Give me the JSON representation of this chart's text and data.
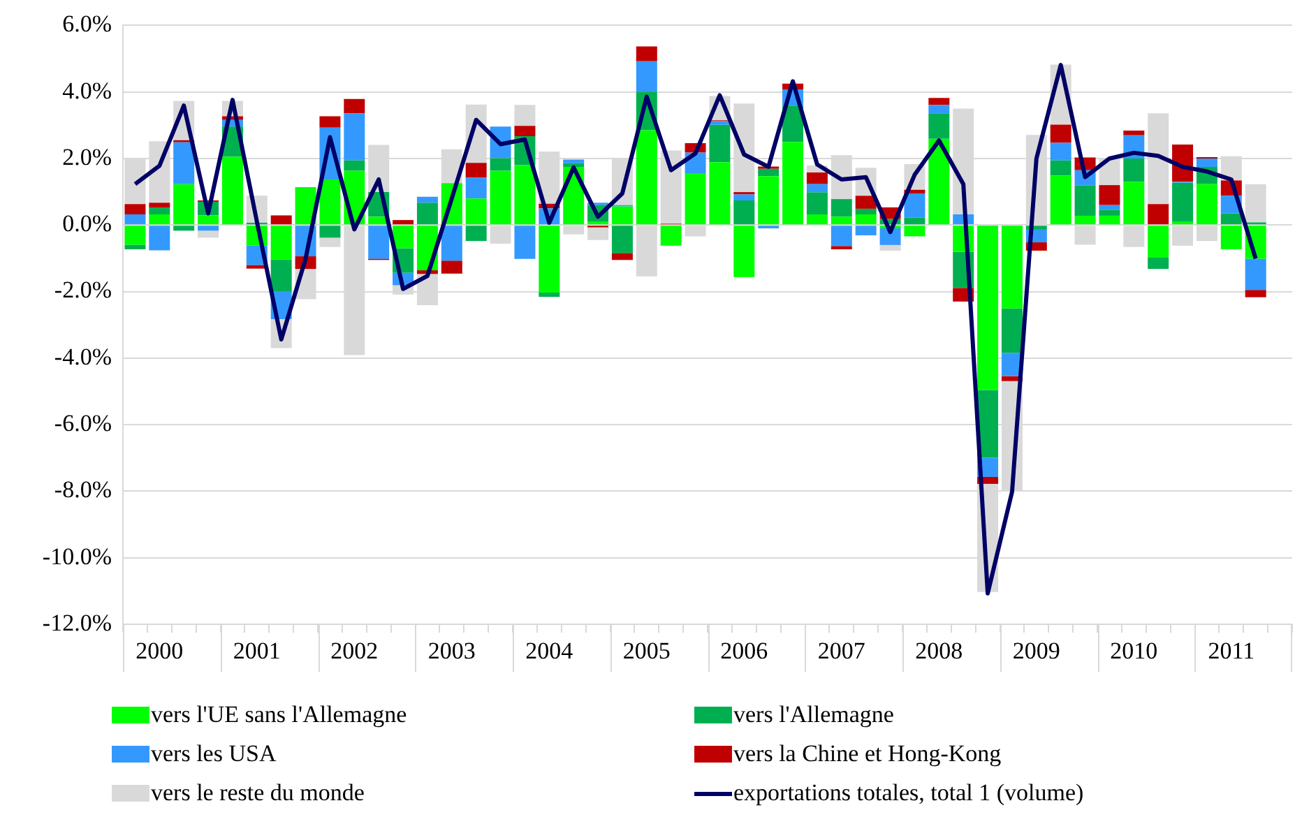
{
  "chart_data": {
    "type": "bar",
    "stacked": true,
    "categories": [
      null,
      "2000",
      null,
      null,
      null,
      "2001",
      null,
      null,
      null,
      "2002",
      null,
      null,
      null,
      "2003",
      null,
      null,
      null,
      "2004",
      null,
      null,
      null,
      "2005",
      null,
      null,
      null,
      "2006",
      null,
      null,
      null,
      "2007",
      null,
      null,
      null,
      "2008",
      null,
      null,
      null,
      "2009",
      null,
      null,
      null,
      "2010",
      null,
      null,
      null,
      "2011",
      null,
      null
    ],
    "series": [
      {
        "name": "vers l'UE sans l'Allemagne",
        "color": "#00ff00",
        "values": [
          -0.59,
          0.32,
          1.23,
          0.29,
          2.05,
          -0.62,
          -1.04,
          1.14,
          1.37,
          1.63,
          0.25,
          -0.7,
          -1.36,
          1.26,
          0.8,
          1.63,
          1.8,
          -2.03,
          1.75,
          0.11,
          0.56,
          2.85,
          -0.62,
          1.56,
          1.89,
          -1.57,
          1.47,
          2.5,
          0.32,
          0.25,
          0.32,
          -0.1,
          -0.34,
          2.59,
          -0.8,
          -4.96,
          -2.51,
          0,
          1.49,
          0.28,
          0.28,
          1.3,
          -0.98,
          0.11,
          1.23,
          -0.73,
          -1.01,
          null
        ]
      },
      {
        "name": "vers l'Allemagne",
        "color": "#00b050",
        "values": [
          -0.14,
          0.21,
          -0.17,
          0.41,
          0.91,
          0.07,
          -0.95,
          0,
          -0.38,
          0.31,
          0.74,
          -0.73,
          0.67,
          0,
          -0.48,
          0.38,
          0.87,
          -0.13,
          0.11,
          0.49,
          -0.84,
          1.16,
          0,
          0,
          1.12,
          0.74,
          0.22,
          1.09,
          0.66,
          0.53,
          0.17,
          0.18,
          0.22,
          0.77,
          -1.09,
          -2.03,
          -1.33,
          -0.14,
          0.45,
          0.91,
          0.18,
          0.7,
          -0.34,
          1.16,
          0.52,
          0.35,
          0.08,
          null
        ]
      },
      {
        "name": "vers les USA",
        "color": "#3399ff",
        "values": [
          0.32,
          -0.76,
          1.26,
          -0.17,
          0.2,
          -0.58,
          -0.84,
          -0.94,
          1.56,
          1.42,
          -1.01,
          -0.38,
          0.18,
          -1.07,
          0.62,
          0.95,
          -1.02,
          0.5,
          0.11,
          0.07,
          0.04,
          0.91,
          0,
          0.62,
          0.11,
          0.18,
          -0.1,
          0.49,
          0.25,
          -0.63,
          -0.31,
          -0.5,
          0.73,
          0.25,
          0.32,
          -0.58,
          -0.7,
          -0.38,
          0.53,
          0.46,
          0.14,
          0.7,
          0,
          0.03,
          0.25,
          0.53,
          -0.94,
          null
        ]
      },
      {
        "name": "vers la Chine et Hong-Kong",
        "color": "#c00000",
        "values": [
          0.31,
          0.14,
          0.06,
          0.04,
          0.11,
          -0.11,
          0.29,
          -0.38,
          0.34,
          0.43,
          -0.04,
          0.15,
          -0.11,
          -0.39,
          0.45,
          0,
          0.31,
          0.14,
          0,
          -0.07,
          -0.21,
          0.45,
          0.04,
          0.28,
          0.03,
          0.07,
          0.07,
          0.17,
          0.35,
          -0.1,
          0.39,
          0.35,
          0.11,
          0.21,
          -0.41,
          -0.21,
          -0.15,
          -0.25,
          0.55,
          0.38,
          0.6,
          0.14,
          0.63,
          1.12,
          0.04,
          0.46,
          -0.22,
          null
        ]
      },
      {
        "name": "vers le reste du monde",
        "color": "#d9d9d9",
        "values": [
          1.37,
          1.85,
          1.18,
          -0.21,
          0.46,
          0.81,
          -0.87,
          -0.91,
          -0.28,
          -3.91,
          1.42,
          -0.28,
          -0.94,
          1.02,
          1.75,
          -0.56,
          0.63,
          1.57,
          -0.28,
          -0.38,
          1.4,
          -1.54,
          2.2,
          -0.34,
          0.73,
          2.66,
          0,
          0,
          0.21,
          1.32,
          0.84,
          -0.17,
          0.77,
          0,
          3.18,
          -3.25,
          -3.3,
          2.71,
          1.8,
          -0.59,
          0.8,
          -0.66,
          2.73,
          -0.62,
          -0.48,
          0.73,
          1.15,
          null
        ]
      },
      {
        "name": "exportations totales, total 1 (volume)",
        "type": "line",
        "color": "#000066",
        "values": [
          1.23,
          1.78,
          3.59,
          0.35,
          3.76,
          0.1,
          -3.44,
          -1.01,
          2.64,
          -0.13,
          1.37,
          -1.92,
          -1.53,
          0.8,
          3.16,
          2.43,
          2.57,
          0.07,
          1.73,
          0.25,
          0.95,
          3.86,
          1.65,
          2.15,
          3.9,
          2.12,
          1.75,
          4.32,
          1.82,
          1.37,
          1.44,
          -0.21,
          1.51,
          2.54,
          1.23,
          -11.07,
          -8.02,
          2,
          4.81,
          1.44,
          2,
          2.17,
          2.08,
          1.75,
          1.61,
          1.37,
          -1.01,
          null
        ]
      }
    ],
    "ylim": [
      -12,
      6
    ],
    "yticks": [
      {
        "value": -12,
        "label": "-12.0%"
      },
      {
        "value": -10,
        "label": "-10.0%"
      },
      {
        "value": -8,
        "label": "-8.0%"
      },
      {
        "value": -6,
        "label": "-6.0%"
      },
      {
        "value": -4,
        "label": "-4.0%"
      },
      {
        "value": -2,
        "label": "-2.0%"
      },
      {
        "value": 0,
        "label": "0.0%"
      },
      {
        "value": 2,
        "label": "2.0%"
      },
      {
        "value": 4,
        "label": "4.0%"
      },
      {
        "value": 6,
        "label": "6.0%"
      }
    ],
    "grid": "y",
    "legend": "bottom",
    "marker": "none"
  }
}
